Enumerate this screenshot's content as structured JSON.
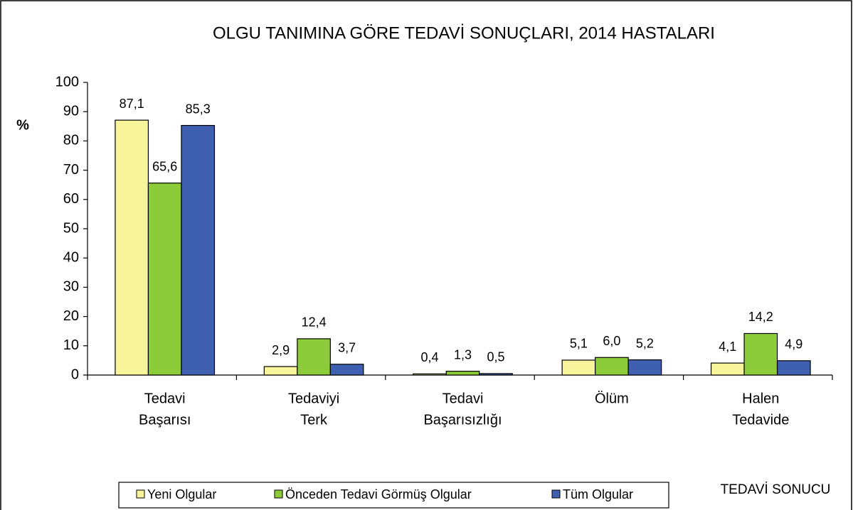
{
  "chart_data": {
    "type": "bar",
    "title": "OLGU TANIMINA GÖRE TEDAVİ SONUÇLARI, 2014 HASTALARI",
    "y_label": "%",
    "x_label": "TEDAVİ SONUCU",
    "categories": [
      [
        "Tedavi",
        "Başarısı"
      ],
      [
        "Tedaviyi",
        "Terk"
      ],
      [
        "Tedavi",
        "Başarısızlığı"
      ],
      [
        "Ölüm"
      ],
      [
        "Halen",
        "Tedavide"
      ]
    ],
    "series": [
      {
        "name": "Yeni Olgular",
        "color": "#f7f49c",
        "values": [
          87.1,
          2.9,
          0.4,
          5.1,
          4.1
        ],
        "value_labels": [
          "87,1",
          "2,9",
          "0,4",
          "5,1",
          "4,1"
        ]
      },
      {
        "name": "Önceden Tedavi Görmüş Olgular",
        "color": "#8ccc3a",
        "values": [
          65.6,
          12.4,
          1.3,
          6.0,
          14.2
        ],
        "value_labels": [
          "65,6",
          "12,4",
          "1,3",
          "6,0",
          "14,2"
        ]
      },
      {
        "name": "Tüm Olgular",
        "color": "#3f5fb0",
        "values": [
          85.3,
          3.7,
          0.5,
          5.2,
          4.9
        ],
        "value_labels": [
          "85,3",
          "3,7",
          "0,5",
          "5,2",
          "4,9"
        ]
      }
    ],
    "ylim": [
      0,
      100
    ],
    "yticks": [
      0,
      10,
      20,
      30,
      40,
      50,
      60,
      70,
      80,
      90,
      100
    ],
    "legend": "bottom"
  }
}
